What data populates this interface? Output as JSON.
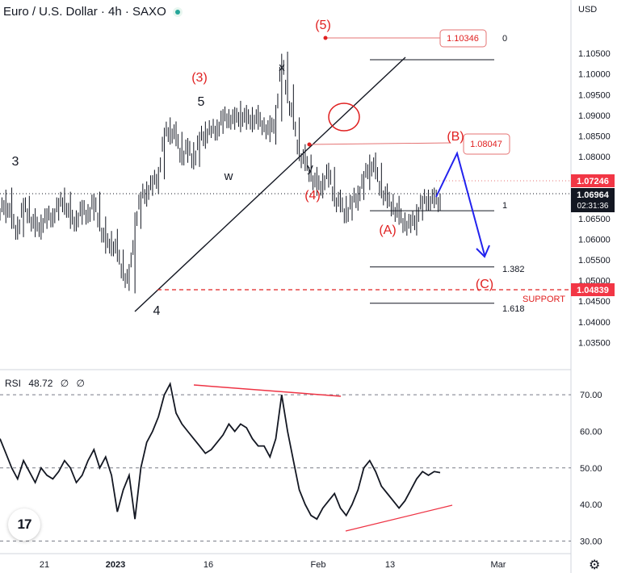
{
  "header": {
    "symbol": "Euro / U.S. Dollar · 4h · SAXO",
    "currency": "USD"
  },
  "chart_data": {
    "type": "line",
    "price_axis": {
      "ticks": [
        "1.10500",
        "1.10000",
        "1.09500",
        "1.09000",
        "1.08500",
        "1.08000",
        "1.07500",
        "1.07000",
        "1.06500",
        "1.06000",
        "1.05500",
        "1.05000",
        "1.04500",
        "1.04000",
        "1.03500"
      ],
      "ylim": [
        1.03,
        1.114
      ]
    },
    "x_ticks": [
      "21",
      "2023",
      "16",
      "Feb",
      "13",
      "Mar"
    ],
    "price_series": {
      "x": [
        0,
        2,
        4,
        6,
        8,
        10,
        12,
        14,
        16,
        18,
        20,
        22,
        24,
        26,
        28,
        30,
        32,
        34,
        36,
        38,
        40,
        42,
        44,
        46,
        48,
        50,
        52,
        54,
        56,
        58,
        60,
        62,
        64,
        66,
        68,
        70,
        72,
        74,
        76,
        78,
        80,
        82,
        84,
        86,
        88,
        90,
        92,
        94,
        96,
        98,
        100,
        102,
        104,
        106,
        108,
        110,
        112,
        114,
        116,
        118,
        120,
        122,
        124,
        126,
        128,
        130,
        132,
        134,
        136,
        138,
        140,
        142,
        144,
        146,
        148,
        150,
        152,
        154,
        156,
        158,
        160,
        162,
        164,
        166,
        168,
        170,
        172,
        174,
        176,
        178,
        180,
        182,
        184,
        186,
        188,
        190,
        192,
        194,
        196,
        198,
        200,
        202,
        204,
        206,
        208,
        210,
        212,
        214,
        216,
        218
      ],
      "y": [
        1.066,
        1.07,
        1.064,
        1.062,
        1.068,
        1.066,
        1.062,
        1.064,
        1.065,
        1.066,
        1.068,
        1.07,
        1.064,
        1.065,
        1.067,
        1.066,
        1.069,
        1.064,
        1.058,
        1.06,
        1.056,
        1.052,
        1.049,
        1.064,
        1.07,
        1.072,
        1.073,
        1.076,
        1.085,
        1.087,
        1.084,
        1.08,
        1.082,
        1.079,
        1.084,
        1.086,
        1.086,
        1.087,
        1.089,
        1.09,
        1.088,
        1.091,
        1.088,
        1.09,
        1.088,
        1.088,
        1.085,
        1.09,
        1.1034,
        1.095,
        1.088,
        1.081,
        1.078,
        1.076,
        1.072,
        1.074,
        1.076,
        1.07,
        1.068,
        1.066,
        1.069,
        1.071,
        1.074,
        1.079,
        1.076,
        1.072,
        1.069,
        1.068,
        1.065,
        1.064,
        1.063,
        1.066,
        1.069,
        1.07,
        1.069,
        1.0696,
        null,
        null,
        null,
        null,
        null,
        null,
        null,
        null,
        null,
        null,
        null,
        null,
        null,
        null,
        null,
        null,
        null,
        null,
        null,
        null,
        null,
        null,
        null,
        null,
        null,
        null,
        null,
        null,
        null,
        null,
        null,
        null,
        null,
        null
      ]
    },
    "price_labels": [
      {
        "value": "1.07246",
        "color": "#f23645"
      },
      {
        "value": "1.06964",
        "color": "#131722",
        "countdown": "02:31:36"
      },
      {
        "value": "1.04839",
        "color": "#f23645"
      }
    ],
    "annotations": {
      "red_boxes": [
        "1.10346",
        "1.08047"
      ],
      "fib_levels": [
        {
          "label": "0",
          "price": 1.10346
        },
        {
          "label": "1",
          "price": 1.0669
        },
        {
          "label": "1.382",
          "price": 1.0533
        },
        {
          "label": "1.618",
          "price": 1.0445
        }
      ],
      "support_label": "SUPPORT",
      "support_price": 1.04839,
      "wave_labels_red": [
        "(5)",
        "(3)",
        "(4)",
        "(B)",
        "(A)",
        "(C)"
      ],
      "wave_labels_black": [
        "3",
        "5",
        "4",
        "x",
        "w",
        "y"
      ]
    },
    "rsi": {
      "label": "RSI",
      "value": "48.72",
      "symbols": [
        "∅",
        "∅"
      ],
      "ticks": [
        "70.00",
        "60.00",
        "50.00",
        "40.00",
        "30.00"
      ],
      "ylim": [
        27,
        76
      ],
      "levels": [
        70,
        50,
        30
      ],
      "series": [
        58,
        54,
        50,
        47,
        52,
        49,
        46,
        50,
        48,
        47,
        49,
        52,
        50,
        46,
        48,
        52,
        55,
        50,
        53,
        48,
        38,
        44,
        48,
        36,
        50,
        57,
        60,
        64,
        70,
        73,
        65,
        62,
        60,
        58,
        56,
        54,
        55,
        57,
        59,
        62,
        60,
        62,
        61,
        58,
        56,
        56,
        53,
        58,
        70,
        60,
        52,
        44,
        40,
        37,
        36,
        39,
        41,
        43,
        39,
        37,
        40,
        44,
        50,
        52,
        49,
        45,
        43,
        41,
        39,
        41,
        44,
        47,
        49,
        48,
        49,
        48.72
      ]
    },
    "colors": {
      "candles": "#131722",
      "wave_red": "#e02020",
      "projection": "#2222ee",
      "divergence": "#ee3344"
    }
  },
  "logo_text": "17"
}
